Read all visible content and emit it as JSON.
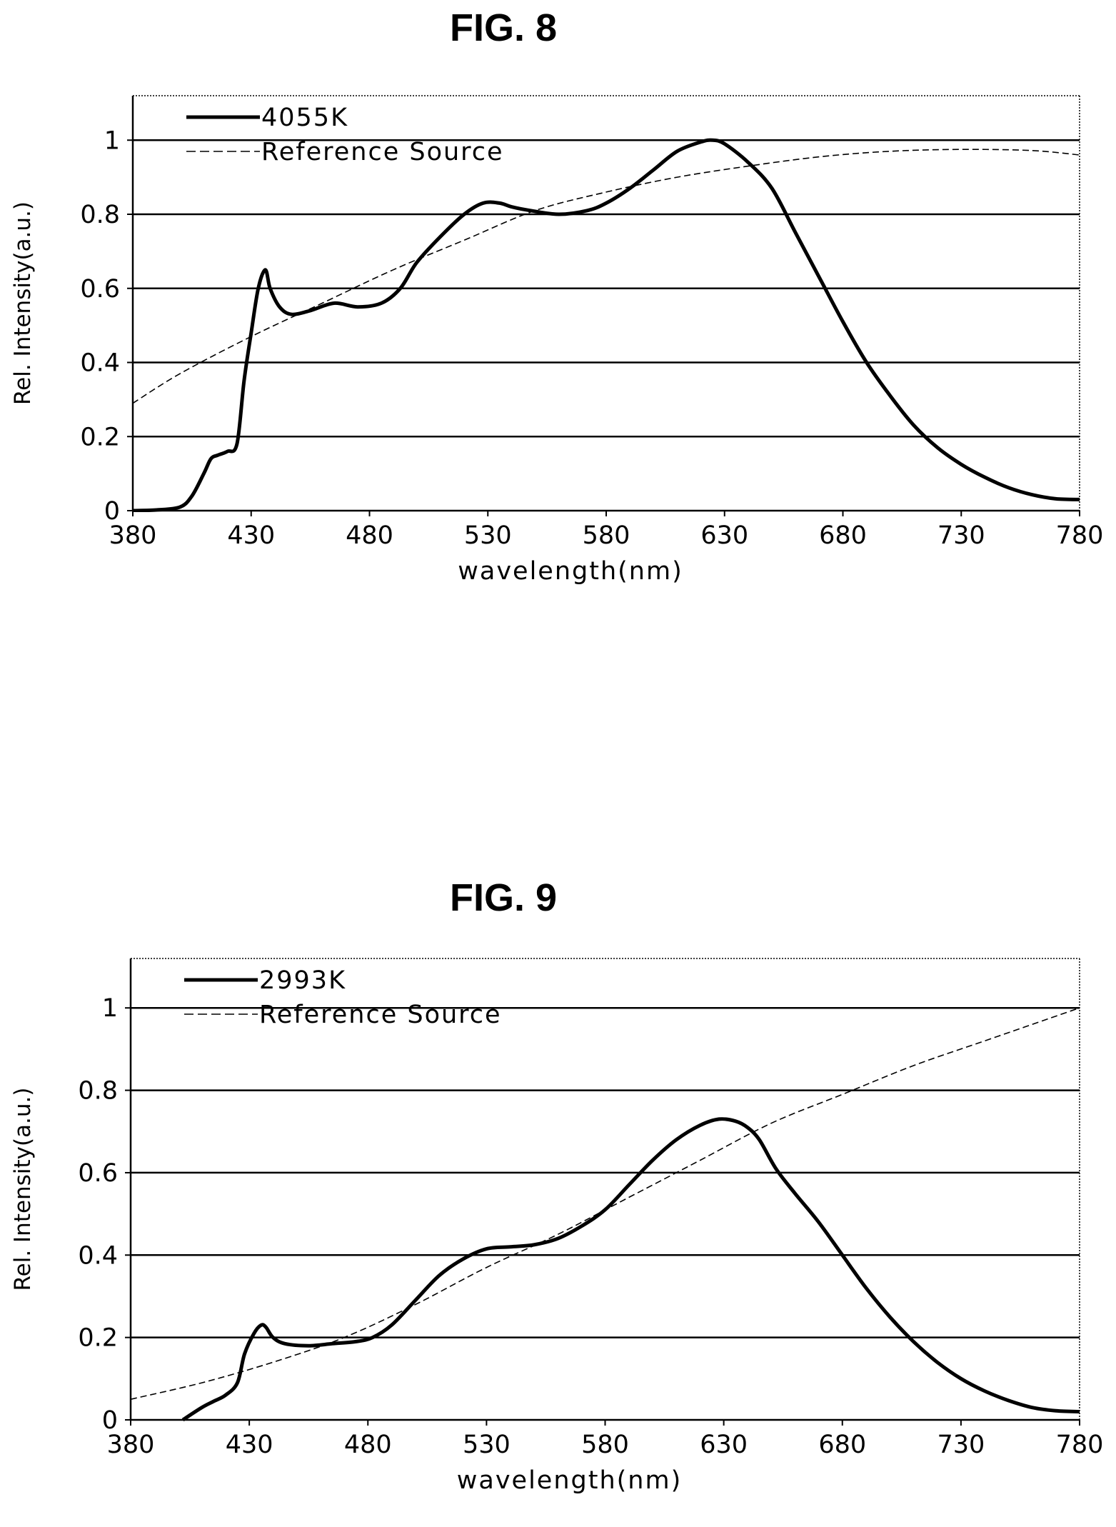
{
  "figures": [
    {
      "title": "FIG. 8"
    },
    {
      "title": "FIG. 9"
    }
  ],
  "chart_data": [
    {
      "type": "line",
      "title": "FIG. 8",
      "xlabel": "wavelength(nm)",
      "ylabel": "Rel. Intensity(a.u.)",
      "xlim": [
        380,
        780
      ],
      "ylim": [
        0,
        1.12
      ],
      "xticks": [
        380,
        430,
        480,
        530,
        580,
        630,
        680,
        730,
        780
      ],
      "yticks": [
        0,
        0.2,
        0.4,
        0.6,
        0.8,
        1
      ],
      "ytick_labels": [
        "0",
        "0.2",
        "0.4",
        "0.6",
        "0.8",
        "1"
      ],
      "grid": "horizontal",
      "legend": "top-left",
      "series": [
        {
          "name": "4055K",
          "style": "solid",
          "x": [
            380,
            390,
            400,
            405,
            410,
            413,
            416,
            420,
            424,
            427,
            430,
            433,
            436,
            438,
            442,
            447,
            455,
            465,
            475,
            485,
            493,
            500,
            510,
            520,
            528,
            535,
            540,
            548,
            560,
            572,
            580,
            590,
            600,
            610,
            620,
            625,
            630,
            640,
            650,
            660,
            670,
            680,
            690,
            700,
            710,
            720,
            730,
            740,
            750,
            760,
            770,
            780
          ],
          "values": [
            0.0,
            0.002,
            0.01,
            0.04,
            0.1,
            0.14,
            0.15,
            0.16,
            0.18,
            0.35,
            0.48,
            0.6,
            0.65,
            0.6,
            0.55,
            0.53,
            0.54,
            0.56,
            0.55,
            0.56,
            0.6,
            0.67,
            0.74,
            0.8,
            0.83,
            0.83,
            0.82,
            0.81,
            0.8,
            0.81,
            0.83,
            0.87,
            0.92,
            0.97,
            0.995,
            1.0,
            0.99,
            0.94,
            0.87,
            0.75,
            0.63,
            0.51,
            0.4,
            0.31,
            0.23,
            0.17,
            0.125,
            0.09,
            0.062,
            0.043,
            0.032,
            0.03
          ]
        },
        {
          "name": "Reference Source",
          "style": "dashed",
          "x": [
            380,
            400,
            430,
            460,
            490,
            520,
            550,
            580,
            610,
            640,
            670,
            700,
            730,
            760,
            780
          ],
          "values": [
            0.29,
            0.37,
            0.47,
            0.56,
            0.65,
            0.73,
            0.81,
            0.86,
            0.9,
            0.93,
            0.955,
            0.97,
            0.975,
            0.972,
            0.96
          ]
        }
      ]
    },
    {
      "type": "line",
      "title": "FIG. 9",
      "xlabel": "wavelength(nm)",
      "ylabel": "Rel. Intensity(a.u.)",
      "xlim": [
        380,
        780
      ],
      "ylim": [
        0,
        1.12
      ],
      "xticks": [
        380,
        430,
        480,
        530,
        580,
        630,
        680,
        730,
        780
      ],
      "yticks": [
        0,
        0.2,
        0.4,
        0.6,
        0.8,
        1
      ],
      "ytick_labels": [
        "0",
        "0.2",
        "0.4",
        "0.6",
        "0.8",
        "1"
      ],
      "grid": "horizontal",
      "legend": "top-left",
      "series": [
        {
          "name": "2993K",
          "style": "solid",
          "x": [
            402,
            410,
            415,
            420,
            425,
            428,
            432,
            435,
            437,
            440,
            445,
            455,
            465,
            475,
            482,
            490,
            500,
            510,
            520,
            530,
            540,
            550,
            560,
            570,
            580,
            590,
            600,
            610,
            620,
            628,
            635,
            640,
            645,
            652,
            660,
            670,
            680,
            690,
            700,
            710,
            720,
            730,
            740,
            750,
            760,
            770,
            780
          ],
          "values": [
            0.0,
            0.03,
            0.045,
            0.06,
            0.09,
            0.16,
            0.21,
            0.23,
            0.225,
            0.2,
            0.185,
            0.18,
            0.185,
            0.19,
            0.2,
            0.23,
            0.29,
            0.35,
            0.39,
            0.415,
            0.42,
            0.425,
            0.44,
            0.47,
            0.51,
            0.57,
            0.63,
            0.68,
            0.715,
            0.73,
            0.725,
            0.71,
            0.68,
            0.61,
            0.55,
            0.48,
            0.4,
            0.32,
            0.25,
            0.19,
            0.14,
            0.1,
            0.07,
            0.047,
            0.03,
            0.022,
            0.02
          ]
        },
        {
          "name": "Reference Source",
          "style": "dashed",
          "x": [
            380,
            410,
            440,
            470,
            500,
            530,
            560,
            590,
            620,
            650,
            680,
            710,
            740,
            780
          ],
          "values": [
            0.05,
            0.09,
            0.14,
            0.2,
            0.28,
            0.37,
            0.45,
            0.54,
            0.63,
            0.72,
            0.79,
            0.86,
            0.92,
            1.0
          ]
        }
      ]
    }
  ]
}
